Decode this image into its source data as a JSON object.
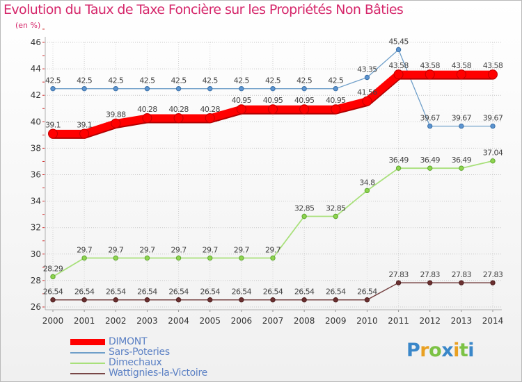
{
  "chart_data": {
    "type": "line",
    "title": "Evolution du Taux de Taxe Foncière sur les Propriétés Non Bâties",
    "unit_label": "(en %)",
    "xlabel": "",
    "ylabel": "(en %)",
    "x": [
      "2000",
      "2001",
      "2002",
      "2003",
      "2004",
      "2005",
      "2006",
      "2007",
      "2008",
      "2009",
      "2010",
      "2011",
      "2012",
      "2013",
      "2014"
    ],
    "ylim": [
      26,
      46
    ],
    "yticks": [
      26,
      28,
      30,
      32,
      34,
      36,
      38,
      40,
      42,
      44,
      46
    ],
    "grid": true,
    "series": [
      {
        "name": "DIMONT",
        "color": "#ff0000",
        "values": [
          39.1,
          39.1,
          39.88,
          40.28,
          40.28,
          40.28,
          40.95,
          40.95,
          40.95,
          40.95,
          41.56,
          43.58,
          43.58,
          43.58,
          43.58
        ],
        "labels": [
          "39.1",
          "39.1",
          "39.88",
          "40.28",
          "40.28",
          "40.28",
          "40.95",
          "40.95",
          "40.95",
          "40.95",
          "41.56",
          "43.58",
          "43.58",
          "43.58",
          "43.58"
        ]
      },
      {
        "name": "Sars-Poteries",
        "color": "#6f9fc9",
        "values": [
          42.5,
          42.5,
          42.5,
          42.5,
          42.5,
          42.5,
          42.5,
          42.5,
          42.5,
          42.5,
          43.35,
          45.45,
          39.67,
          39.67,
          39.67
        ],
        "labels": [
          "42.5",
          "42.5",
          "42.5",
          "42.5",
          "42.5",
          "42.5",
          "42.5",
          "42.5",
          "42.5",
          "42.5",
          "43.35",
          "45.45",
          "39.67",
          "39.67",
          "39.67"
        ]
      },
      {
        "name": "Dimechaux",
        "color": "#a8e07a",
        "values": [
          28.29,
          29.7,
          29.7,
          29.7,
          29.7,
          29.7,
          29.7,
          29.7,
          32.85,
          32.85,
          34.8,
          36.49,
          36.49,
          36.49,
          37.04
        ],
        "labels": [
          "28.29",
          "29.7",
          "29.7",
          "29.7",
          "29.7",
          "29.7",
          "29.7",
          "29.7",
          "32.85",
          "32.85",
          "34.8",
          "36.49",
          "36.49",
          "36.49",
          "37.04"
        ]
      },
      {
        "name": "Wattignies-la-Victoire",
        "color": "#784646",
        "values": [
          26.54,
          26.54,
          26.54,
          26.54,
          26.54,
          26.54,
          26.54,
          26.54,
          26.54,
          26.54,
          26.54,
          27.83,
          27.83,
          27.83,
          27.83
        ],
        "labels": [
          "26.54",
          "26.54",
          "26.54",
          "26.54",
          "26.54",
          "26.54",
          "26.54",
          "26.54",
          "26.54",
          "26.54",
          "26.54",
          "27.83",
          "27.83",
          "27.83",
          "27.83"
        ]
      }
    ],
    "legend_position": "bottom-left"
  },
  "logo": [
    "P",
    "r",
    "o",
    "x",
    "i",
    "t",
    "i"
  ]
}
